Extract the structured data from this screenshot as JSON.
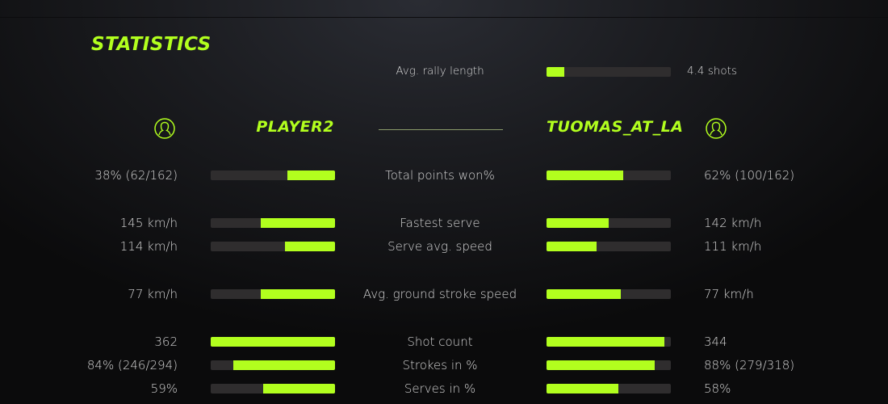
{
  "title": "STATISTICS",
  "accent_color": "#b2ff1e",
  "rally": {
    "label": "Avg. rally length",
    "value": "4.4 shots",
    "fraction": 0.14
  },
  "players": {
    "left": {
      "name": "PLAYER2",
      "icon": "user-icon"
    },
    "right": {
      "name": "TUOMAS_AT_LA",
      "icon": "user-icon"
    }
  },
  "stats": [
    {
      "label": "Total points won%",
      "left": "38% (62/162)",
      "right": "62% (100/162)",
      "left_fraction": 0.38,
      "right_fraction": 0.62
    },
    {
      "label": "Fastest serve",
      "left": "145 km/h",
      "right": "142 km/h",
      "left_fraction": 0.6,
      "right_fraction": 0.5
    },
    {
      "label": "Serve avg. speed",
      "left": "114 km/h",
      "right": "111 km/h",
      "left_fraction": 0.4,
      "right_fraction": 0.4
    },
    {
      "label": "Avg. ground stroke speed",
      "left": "77 km/h",
      "right": "77 km/h",
      "left_fraction": 0.6,
      "right_fraction": 0.6
    },
    {
      "label": "Shot count",
      "left": "362",
      "right": "344",
      "left_fraction": 1.0,
      "right_fraction": 0.95
    },
    {
      "label": "Strokes in %",
      "left": "84% (246/294)",
      "right": "88% (279/318)",
      "left_fraction": 0.82,
      "right_fraction": 0.87
    },
    {
      "label": "Serves in %",
      "left": "59%",
      "right": "58%",
      "left_fraction": 0.58,
      "right_fraction": 0.575
    }
  ]
}
